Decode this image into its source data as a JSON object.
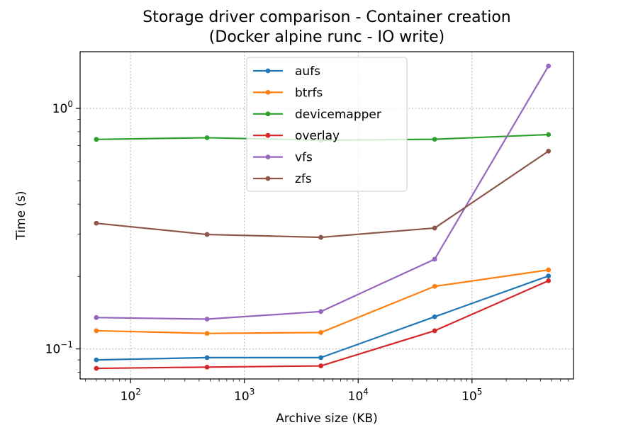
{
  "chart_data": {
    "type": "line",
    "title": "Storage driver comparison - Container creation",
    "subtitle": "(Docker alpine runc - IO write)",
    "xlabel": "Archive size (KB)",
    "ylabel": "Time (s)",
    "xscale": "log",
    "yscale": "log",
    "xlim": [
      36,
      780000
    ],
    "ylim": [
      0.075,
      1.72
    ],
    "grid": true,
    "legend_position": "upper-center",
    "x_ticks": [
      {
        "base": "10",
        "exp": "2",
        "value": 100
      },
      {
        "base": "10",
        "exp": "3",
        "value": 1000
      },
      {
        "base": "10",
        "exp": "4",
        "value": 10000
      },
      {
        "base": "10",
        "exp": "5",
        "value": 100000
      }
    ],
    "y_ticks": [
      {
        "base": "10",
        "exp": "−1",
        "value": 0.1
      },
      {
        "base": "10",
        "exp": "0",
        "value": 1
      }
    ],
    "x": [
      50,
      470,
      4700,
      47000,
      470000
    ],
    "series": [
      {
        "name": "aufs",
        "color": "#1f77b4",
        "values": [
          0.09,
          0.092,
          0.092,
          0.136,
          0.201
        ]
      },
      {
        "name": "btrfs",
        "color": "#ff7f0e",
        "values": [
          0.119,
          0.116,
          0.117,
          0.182,
          0.213
        ]
      },
      {
        "name": "devicemapper",
        "color": "#2ca02c",
        "values": [
          0.743,
          0.755,
          0.737,
          0.744,
          0.778
        ]
      },
      {
        "name": "overlay",
        "color": "#d62728",
        "values": [
          0.083,
          0.084,
          0.085,
          0.119,
          0.192
        ]
      },
      {
        "name": "vfs",
        "color": "#9467bd",
        "values": [
          0.135,
          0.133,
          0.143,
          0.236,
          1.5
        ]
      },
      {
        "name": "zfs",
        "color": "#8c564b",
        "values": [
          0.333,
          0.299,
          0.291,
          0.318,
          0.664
        ]
      }
    ]
  }
}
